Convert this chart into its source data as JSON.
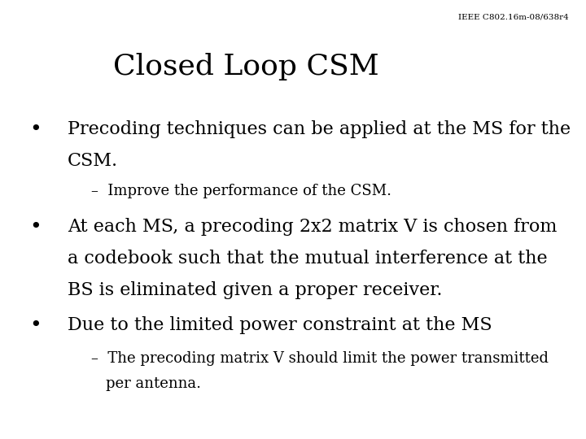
{
  "title": "Closed Loop CSM",
  "subtitle": "IEEE C802.16m-08/638r4",
  "background_color": "#ffffff",
  "title_color": "#000000",
  "title_fontsize": 26,
  "subtitle_fontsize": 7.5,
  "body_fontsize": 16,
  "sub_fontsize": 13,
  "bullet1_line1": "Precoding techniques can be applied at the MS for the",
  "bullet1_line2": "CSM.",
  "sub1": "–  Improve the performance of the CSM.",
  "bullet2_line1": "At each MS, a precoding 2x2 matrix V is chosen from",
  "bullet2_line2": "a codebook such that the mutual interference at the",
  "bullet2_line3": "BS is eliminated given a proper receiver.",
  "bullet3": "Due to the limited power constraint at the MS",
  "sub3_line1": "–  The precoding matrix V should limit the power transmitted",
  "sub3_line2": "    per antenna."
}
